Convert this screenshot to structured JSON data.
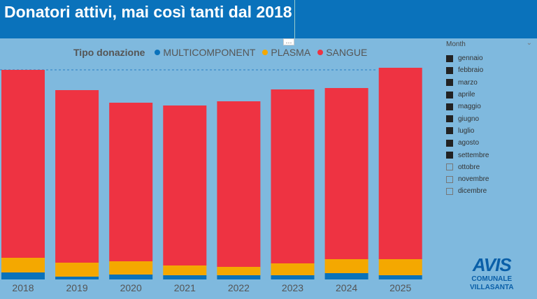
{
  "title": "Donatori attivi, mai così tanti dal 2018",
  "more_label": "···",
  "slicer": {
    "header": "Month",
    "chevron": "⌄",
    "items": [
      {
        "label": "gennaio",
        "checked": true
      },
      {
        "label": "febbraio",
        "checked": true
      },
      {
        "label": "marzo",
        "checked": true
      },
      {
        "label": "aprile",
        "checked": true
      },
      {
        "label": "maggio",
        "checked": true
      },
      {
        "label": "giugno",
        "checked": true
      },
      {
        "label": "luglio",
        "checked": true
      },
      {
        "label": "agosto",
        "checked": true
      },
      {
        "label": "settembre",
        "checked": true
      },
      {
        "label": "ottobre",
        "checked": false
      },
      {
        "label": "novembre",
        "checked": false
      },
      {
        "label": "dicembre",
        "checked": false
      }
    ]
  },
  "logo": {
    "name": "AVIS",
    "line1": "COMUNALE",
    "line2": "VILLASANTA"
  },
  "chart_data": {
    "type": "bar",
    "stacked": true,
    "legend_title": "Tipo donazione",
    "legend_position": "top",
    "categories": [
      "2018",
      "2019",
      "2020",
      "2021",
      "2022",
      "2023",
      "2024",
      "2025"
    ],
    "series": [
      {
        "name": "MULTICOMPONENT",
        "color": "#0a72bb",
        "values": [
          10,
          4,
          7,
          6,
          6,
          6,
          9,
          6
        ]
      },
      {
        "name": "PLASMA",
        "color": "#f4a800",
        "values": [
          21,
          20,
          19,
          14,
          12,
          17,
          20,
          23
        ]
      },
      {
        "name": "SANGUE",
        "color": "#ee3342",
        "values": [
          269,
          247,
          227,
          229,
          237,
          249,
          245,
          274
        ]
      }
    ],
    "reference_line": 300,
    "ylim": [
      0,
      310
    ],
    "xlabel": "",
    "ylabel": "",
    "grid": false
  }
}
